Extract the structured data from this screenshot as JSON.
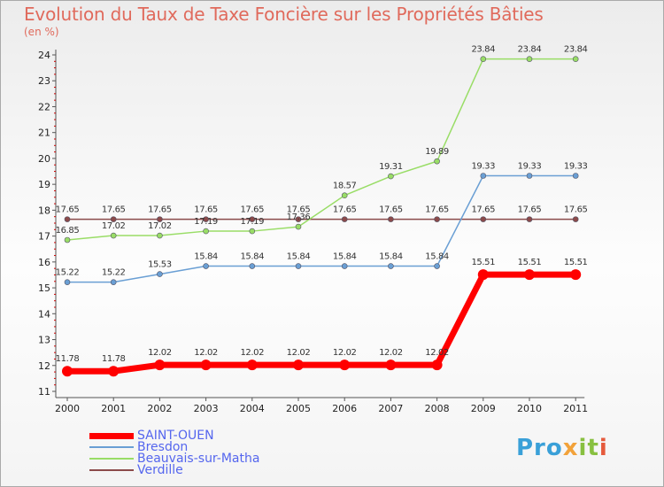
{
  "header": {
    "title": "Evolution du Taux de Taxe Foncière sur les Propriétés Bâties",
    "unit": "(en %)"
  },
  "logo": {
    "text": "Proxiti",
    "parts": [
      "Pro",
      "x",
      "it",
      "i"
    ]
  },
  "chart_data": {
    "type": "line",
    "title": "Evolution du Taux de Taxe Foncière sur les Propriétés Bâties",
    "ylabel": "(en %)",
    "xlabel": "",
    "ylim": [
      11,
      24
    ],
    "yticks": [
      11,
      12,
      13,
      14,
      15,
      16,
      17,
      18,
      19,
      20,
      21,
      22,
      23,
      24
    ],
    "categories": [
      "2000",
      "2001",
      "2002",
      "2003",
      "2004",
      "2005",
      "2006",
      "2007",
      "2008",
      "2009",
      "2010",
      "2011"
    ],
    "series": [
      {
        "name": "SAINT-OUEN",
        "color": "#ff0000",
        "values": [
          11.78,
          11.78,
          12.02,
          12.02,
          12.02,
          12.02,
          12.02,
          12.02,
          12.02,
          15.51,
          15.51,
          15.51
        ],
        "labels": [
          "11.78",
          "11.78",
          "12.02",
          "12.02",
          "12.02",
          "12.02",
          "12.02",
          "12.02",
          "12.02",
          "15.51",
          "15.51",
          "15.51"
        ]
      },
      {
        "name": "Bresdon",
        "color": "#6a9fd4",
        "values": [
          15.22,
          15.22,
          15.53,
          15.84,
          15.84,
          15.84,
          15.84,
          15.84,
          15.84,
          19.33,
          19.33,
          19.33
        ],
        "labels": [
          "15.22",
          "15.22",
          "15.53",
          "15.84",
          "15.84",
          "15.84",
          "15.84",
          "15.84",
          "15.84",
          "19.33",
          "19.33",
          "19.33"
        ]
      },
      {
        "name": "Beauvais-sur-Matha",
        "color": "#99dd66",
        "values": [
          16.85,
          17.02,
          17.02,
          17.19,
          17.19,
          17.36,
          18.57,
          19.31,
          19.89,
          23.84,
          23.84,
          23.84
        ],
        "labels": [
          "16.85",
          "17.02",
          "17.02",
          "17.19",
          "17.19",
          "17.36",
          "18.57",
          "19.31",
          "19.89",
          "23.84",
          "23.84",
          "23.84"
        ]
      },
      {
        "name": "Verdille",
        "color": "#8b4a4a",
        "values": [
          17.65,
          17.65,
          17.65,
          17.65,
          17.65,
          17.65,
          17.65,
          17.65,
          17.65,
          17.65,
          17.65,
          17.65
        ],
        "labels": [
          "17.65",
          "17.65",
          "17.65",
          "17.65",
          "17.65",
          "17.65",
          "17.65",
          "17.65",
          "17.65",
          "17.65",
          "17.65",
          "17.65"
        ]
      }
    ],
    "legend_position": "bottom-left",
    "grid": false
  }
}
